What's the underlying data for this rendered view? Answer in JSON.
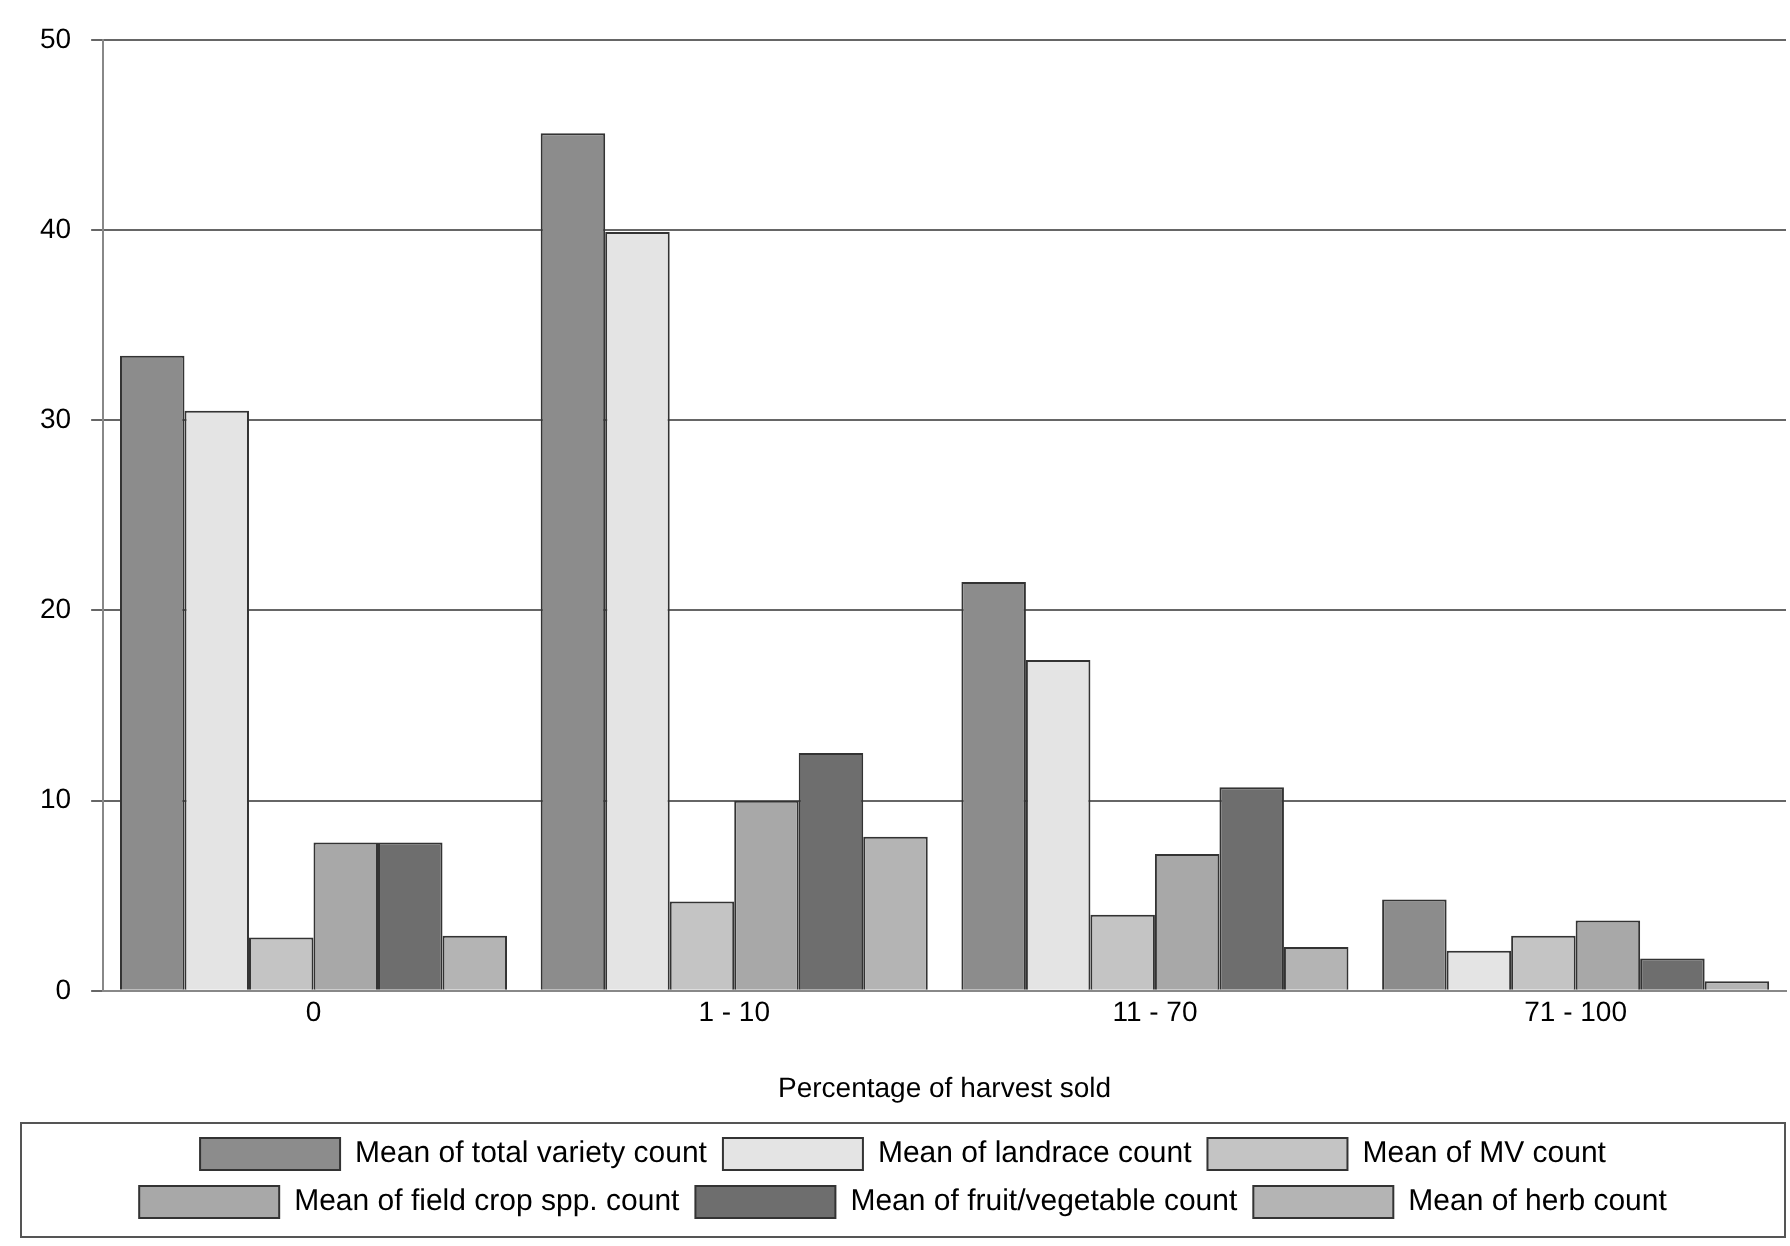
{
  "chart_data": {
    "type": "bar",
    "xlabel": "Percentage of harvest sold",
    "categories": [
      "0",
      "1 - 10",
      "11 - 70",
      "71 - 100"
    ],
    "series": [
      {
        "name": "Mean of total variety count",
        "color": "#8c8c8c",
        "values": [
          33.4,
          45.1,
          21.5,
          4.8
        ]
      },
      {
        "name": "Mean of landrace count",
        "color": "#e4e4e4",
        "values": [
          30.5,
          39.9,
          17.4,
          2.1
        ]
      },
      {
        "name": "Mean of MV count",
        "color": "#c4c4c4",
        "values": [
          2.8,
          4.7,
          4.0,
          2.9
        ]
      },
      {
        "name": "Mean of field crop spp. count",
        "color": "#a8a8a8",
        "values": [
          7.8,
          10.0,
          7.2,
          3.7
        ]
      },
      {
        "name": "Mean of fruit/vegetable count",
        "color": "#6e6e6e",
        "values": [
          7.8,
          12.5,
          10.7,
          1.7
        ]
      },
      {
        "name": "Mean of herb count",
        "color": "#b4b4b4",
        "values": [
          2.9,
          8.1,
          2.3,
          0.5
        ]
      }
    ],
    "ylim": [
      0,
      50
    ],
    "yticks": [
      0,
      10,
      20,
      30,
      40,
      50
    ],
    "grid": "y",
    "legend": "bottom"
  }
}
